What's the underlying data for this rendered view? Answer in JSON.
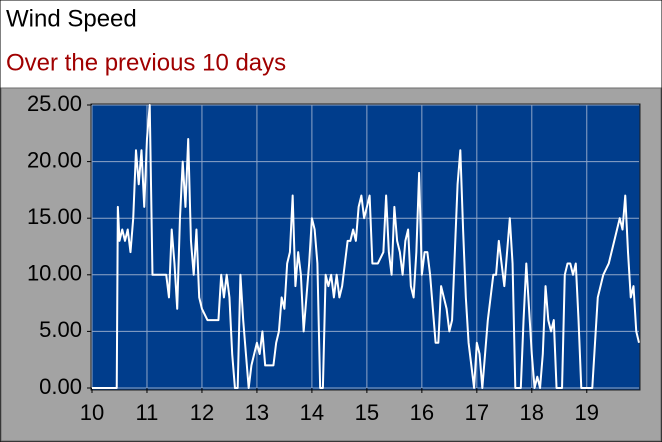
{
  "chart_data": {
    "type": "line",
    "title": "Wind Speed",
    "subtitle": "Over the previous 10 days",
    "x": [
      10,
      10.45,
      10.47,
      10.5,
      10.55,
      10.6,
      10.65,
      10.7,
      10.75,
      10.8,
      10.85,
      10.9,
      10.95,
      11.0,
      11.05,
      11.1,
      11.2,
      11.35,
      11.4,
      11.45,
      11.5,
      11.55,
      11.6,
      11.65,
      11.7,
      11.75,
      11.8,
      11.85,
      11.9,
      11.95,
      12.0,
      12.1,
      12.3,
      12.35,
      12.4,
      12.45,
      12.5,
      12.55,
      12.6,
      12.65,
      12.7,
      12.75,
      12.8,
      12.85,
      12.9,
      12.95,
      13.0,
      13.05,
      13.1,
      13.15,
      13.3,
      13.35,
      13.4,
      13.45,
      13.5,
      13.55,
      13.6,
      13.65,
      13.7,
      13.75,
      13.8,
      13.85,
      13.9,
      13.95,
      14.0,
      14.05,
      14.1,
      14.15,
      14.2,
      14.25,
      14.3,
      14.35,
      14.4,
      14.45,
      14.5,
      14.55,
      14.6,
      14.65,
      14.7,
      14.75,
      14.8,
      14.85,
      14.9,
      14.95,
      15.0,
      15.05,
      15.1,
      15.2,
      15.3,
      15.35,
      15.4,
      15.45,
      15.5,
      15.55,
      15.6,
      15.65,
      15.7,
      15.75,
      15.8,
      15.85,
      15.9,
      15.95,
      16.0,
      16.05,
      16.1,
      16.15,
      16.2,
      16.25,
      16.3,
      16.35,
      16.4,
      16.45,
      16.5,
      16.55,
      16.6,
      16.65,
      16.7,
      16.75,
      16.8,
      16.85,
      16.9,
      16.95,
      17.0,
      17.05,
      17.1,
      17.2,
      17.25,
      17.3,
      17.35,
      17.4,
      17.45,
      17.5,
      17.55,
      17.6,
      17.65,
      17.7,
      17.8,
      17.85,
      17.9,
      17.95,
      18.0,
      18.05,
      18.1,
      18.15,
      18.2,
      18.25,
      18.3,
      18.35,
      18.4,
      18.45,
      18.55,
      18.6,
      18.65,
      18.7,
      18.75,
      18.8,
      18.85,
      18.9,
      19.0,
      19.1,
      19.2,
      19.3,
      19.4,
      19.5,
      19.6,
      19.65,
      19.7,
      19.75,
      19.8,
      19.85,
      19.9,
      19.95
    ],
    "values": [
      0,
      0,
      16,
      13,
      14,
      13,
      14,
      12,
      15,
      21,
      18,
      21,
      16,
      22,
      25,
      10,
      10,
      10,
      8,
      14,
      11,
      7,
      15,
      20,
      16,
      22,
      13,
      10,
      14,
      8,
      7,
      6,
      6,
      10,
      8,
      10,
      8,
      3,
      0,
      0,
      10,
      6,
      3,
      0,
      2,
      3,
      4,
      3,
      5,
      2,
      2,
      4,
      5,
      8,
      7,
      11,
      12,
      17,
      9,
      12,
      10,
      5,
      8,
      11,
      15,
      14,
      11,
      0,
      0,
      10,
      9,
      10,
      8,
      10,
      8,
      9,
      11,
      13,
      13,
      14,
      13,
      16,
      17,
      15,
      16,
      17,
      11,
      11,
      12,
      17,
      12,
      10,
      16,
      13,
      12,
      10,
      13,
      14,
      9,
      8,
      12,
      19,
      10,
      12,
      12,
      10,
      7,
      4,
      4,
      9,
      8,
      7,
      5,
      6,
      12,
      18,
      21,
      14,
      8,
      4,
      2,
      0,
      4,
      3,
      0,
      6,
      8,
      10,
      10,
      13,
      11,
      9,
      12,
      15,
      11,
      0,
      0,
      6,
      11,
      7,
      3,
      0,
      1,
      0,
      3,
      9,
      6,
      5,
      6,
      0,
      0,
      10,
      11,
      11,
      10,
      11,
      6,
      0,
      0,
      0,
      8,
      10,
      11,
      13,
      15,
      14,
      17,
      12,
      8,
      9,
      5,
      4
    ],
    "color": "#ffffff",
    "xlim": [
      10,
      19.95
    ],
    "xticks": [
      10,
      11,
      12,
      13,
      14,
      15,
      16,
      17,
      18,
      19
    ],
    "ylim": [
      0,
      25
    ],
    "yticks": [
      {
        "value": 0,
        "label": "0.00"
      },
      {
        "value": 5,
        "label": "5.00"
      },
      {
        "value": 10,
        "label": "10.00"
      },
      {
        "value": 15,
        "label": "15.00"
      },
      {
        "value": 20,
        "label": "20.00"
      },
      {
        "value": 25,
        "label": "25.00"
      }
    ],
    "grid": true
  }
}
